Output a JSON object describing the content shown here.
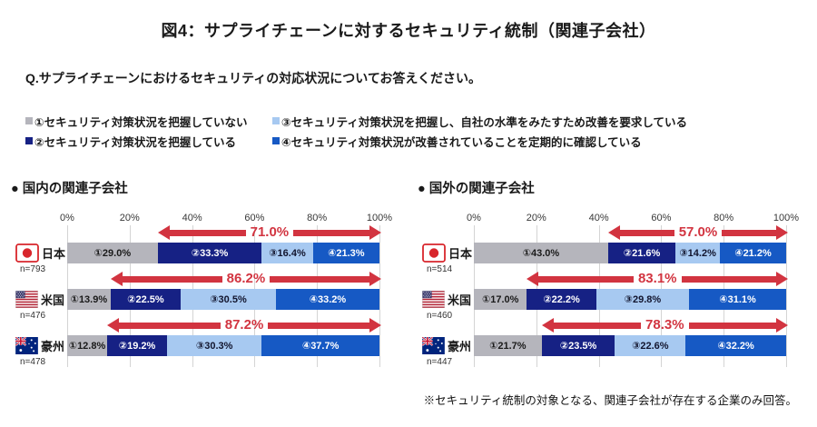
{
  "title": "図4：サプライチェーンに対するセキュリティ統制（関連子会社）",
  "question": "Q.サプライチェーンにおけるセキュリティの対応状況についてお答えください。",
  "footnote": "※セキュリティ統制の対象となる、関連子会社が存在する企業のみ回答。",
  "colors": {
    "seg1": "#b5b5bc",
    "seg2": "#162184",
    "seg3": "#a7c9f1",
    "seg4": "#1659c4",
    "arrow": "#d23440",
    "gridline": "#d4d4d4"
  },
  "legend": {
    "items": [
      {
        "label": "①セキュリティ対策状況を把握していない"
      },
      {
        "label": "②セキュリティ対策状況を把握している"
      },
      {
        "label": "③セキュリティ対策状況を把握し、自社の水準をみたすため改善を要求している"
      },
      {
        "label": "④セキュリティ対策状況が改善されていることを定期的に確認している"
      }
    ]
  },
  "chart_data": [
    {
      "type": "bar",
      "orientation": "horizontal-stacked",
      "title": "● 国内の関連子会社",
      "x_ticks": [
        "0%",
        "20%",
        "40%",
        "60%",
        "80%",
        "100%"
      ],
      "xlim": [
        0,
        100
      ],
      "grid": true,
      "categories": [
        "日本",
        "米国",
        "豪州"
      ],
      "series": [
        {
          "name": "①セキュリティ対策状況を把握していない",
          "values": [
            29.0,
            13.9,
            12.8
          ]
        },
        {
          "name": "②セキュリティ対策状況を把握している",
          "values": [
            33.3,
            22.5,
            19.2
          ]
        },
        {
          "name": "③セキュリティ対策状況を把握し、自社の水準をみたすため改善を要求している",
          "values": [
            16.4,
            30.5,
            30.3
          ]
        },
        {
          "name": "④セキュリティ対策状況が改善されていることを定期的に確認している",
          "values": [
            21.3,
            33.2,
            37.7
          ]
        }
      ],
      "rows": [
        {
          "country": "日本",
          "flag_icon": "japan-flag-icon",
          "n_label": "n=793",
          "values": [
            29.0,
            33.3,
            16.4,
            21.3
          ],
          "segment_labels": [
            "①29.0%",
            "②33.3%",
            "③16.4%",
            "④21.3%"
          ],
          "arrow_label": "71.0%",
          "arrow_start": 29.0
        },
        {
          "country": "米国",
          "flag_icon": "usa-flag-icon",
          "n_label": "n=476",
          "values": [
            13.9,
            22.5,
            30.5,
            33.2
          ],
          "segment_labels": [
            "①13.9%",
            "②22.5%",
            "③30.5%",
            "④33.2%"
          ],
          "arrow_label": "86.2%",
          "arrow_start": 13.9
        },
        {
          "country": "豪州",
          "flag_icon": "australia-flag-icon",
          "n_label": "n=478",
          "values": [
            12.8,
            19.2,
            30.3,
            37.7
          ],
          "segment_labels": [
            "①12.8%",
            "②19.2%",
            "③30.3%",
            "④37.7%"
          ],
          "arrow_label": "87.2%",
          "arrow_start": 12.8
        }
      ]
    },
    {
      "type": "bar",
      "orientation": "horizontal-stacked",
      "title": "● 国外の関連子会社",
      "x_ticks": [
        "0%",
        "20%",
        "40%",
        "60%",
        "80%",
        "100%"
      ],
      "xlim": [
        0,
        100
      ],
      "grid": true,
      "categories": [
        "日本",
        "米国",
        "豪州"
      ],
      "series": [
        {
          "name": "①セキュリティ対策状況を把握していない",
          "values": [
            43.0,
            17.0,
            21.7
          ]
        },
        {
          "name": "②セキュリティ対策状況を把握している",
          "values": [
            21.6,
            22.2,
            23.5
          ]
        },
        {
          "name": "③セキュリティ対策状況を把握し、自社の水準をみたすため改善を要求している",
          "values": [
            14.2,
            29.8,
            22.6
          ]
        },
        {
          "name": "④セキュリティ対策状況が改善されていることを定期的に確認している",
          "values": [
            21.2,
            31.1,
            32.2
          ]
        }
      ],
      "rows": [
        {
          "country": "日本",
          "flag_icon": "japan-flag-icon",
          "n_label": "n=514",
          "values": [
            43.0,
            21.6,
            14.2,
            21.2
          ],
          "segment_labels": [
            "①43.0%",
            "②21.6%",
            "③14.2%",
            "④21.2%"
          ],
          "arrow_label": "57.0%",
          "arrow_start": 43.0
        },
        {
          "country": "米国",
          "flag_icon": "usa-flag-icon",
          "n_label": "n=460",
          "values": [
            17.0,
            22.2,
            29.8,
            31.1
          ],
          "segment_labels": [
            "①17.0%",
            "②22.2%",
            "③29.8%",
            "④31.1%"
          ],
          "arrow_label": "83.1%",
          "arrow_start": 17.0
        },
        {
          "country": "豪州",
          "flag_icon": "australia-flag-icon",
          "n_label": "n=447",
          "values": [
            21.7,
            23.5,
            22.6,
            32.2
          ],
          "segment_labels": [
            "①21.7%",
            "②23.5%",
            "③22.6%",
            "④32.2%"
          ],
          "arrow_label": "78.3%",
          "arrow_start": 21.7
        }
      ]
    }
  ]
}
